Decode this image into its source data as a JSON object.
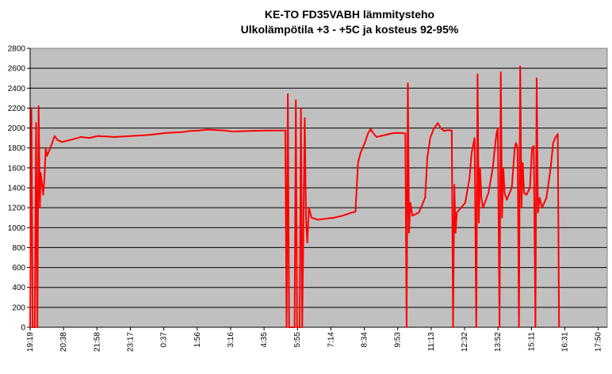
{
  "chart_data": {
    "type": "line",
    "title": "KE-TO FD35VABH lämmitysteho",
    "subtitle": "Ulkolämpötila  +3 - +5C ja kosteus 92-95%",
    "xlabel": "",
    "ylabel": "",
    "ylim": [
      0,
      2800
    ],
    "yticks": [
      0,
      200,
      400,
      600,
      800,
      1000,
      1200,
      1400,
      1600,
      1800,
      2000,
      2200,
      2400,
      2600,
      2800
    ],
    "xtick_labels": [
      "19:19",
      "20:38",
      "21:58",
      "23:17",
      "0:37",
      "1:56",
      "3:16",
      "4:35",
      "5:55",
      "7:14",
      "8:34",
      "9:53",
      "11:13",
      "12:32",
      "13:52",
      "15:11",
      "16:31",
      "17:50"
    ],
    "xlim": [
      0,
      1366
    ],
    "grid": true,
    "legend": "none",
    "plot_background": "#c0c0c0",
    "series": [
      {
        "color": "#ff0000",
        "points": [
          [
            0,
            0
          ],
          [
            3,
            2200
          ],
          [
            6,
            0
          ],
          [
            11,
            0
          ],
          [
            14,
            2050
          ],
          [
            17,
            0
          ],
          [
            20,
            2220
          ],
          [
            23,
            1200
          ],
          [
            25,
            1550
          ],
          [
            28,
            1450
          ],
          [
            31,
            1330
          ],
          [
            34,
            1500
          ],
          [
            37,
            1800
          ],
          [
            40,
            1720
          ],
          [
            48,
            1800
          ],
          [
            58,
            1920
          ],
          [
            65,
            1880
          ],
          [
            75,
            1860
          ],
          [
            95,
            1880
          ],
          [
            120,
            1910
          ],
          [
            140,
            1900
          ],
          [
            160,
            1920
          ],
          [
            200,
            1910
          ],
          [
            240,
            1920
          ],
          [
            280,
            1930
          ],
          [
            320,
            1950
          ],
          [
            360,
            1960
          ],
          [
            380,
            1970
          ],
          [
            400,
            1975
          ],
          [
            420,
            1985
          ],
          [
            440,
            1980
          ],
          [
            460,
            1975
          ],
          [
            480,
            1965
          ],
          [
            520,
            1970
          ],
          [
            560,
            1975
          ],
          [
            600,
            1975
          ],
          [
            604,
            1975
          ],
          [
            607,
            0
          ],
          [
            610,
            2340
          ],
          [
            613,
            0
          ],
          [
            626,
            0
          ],
          [
            629,
            2280
          ],
          [
            632,
            0
          ],
          [
            638,
            0
          ],
          [
            641,
            2200
          ],
          [
            644,
            0
          ],
          [
            650,
            2100
          ],
          [
            653,
            1100
          ],
          [
            656,
            850
          ],
          [
            660,
            1200
          ],
          [
            666,
            1100
          ],
          [
            680,
            1080
          ],
          [
            700,
            1090
          ],
          [
            720,
            1100
          ],
          [
            740,
            1120
          ],
          [
            760,
            1150
          ],
          [
            770,
            1160
          ],
          [
            776,
            1650
          ],
          [
            782,
            1750
          ],
          [
            792,
            1850
          ],
          [
            800,
            1950
          ],
          [
            806,
            1990
          ],
          [
            812,
            1950
          ],
          [
            820,
            1910
          ],
          [
            840,
            1930
          ],
          [
            860,
            1950
          ],
          [
            880,
            1950
          ],
          [
            888,
            1945
          ],
          [
            891,
            0
          ],
          [
            894,
            2450
          ],
          [
            897,
            950
          ],
          [
            900,
            1250
          ],
          [
            905,
            1120
          ],
          [
            920,
            1150
          ],
          [
            935,
            1300
          ],
          [
            940,
            1700
          ],
          [
            947,
            1900
          ],
          [
            955,
            1990
          ],
          [
            965,
            2050
          ],
          [
            972,
            2000
          ],
          [
            980,
            1970
          ],
          [
            990,
            1980
          ],
          [
            998,
            1975
          ],
          [
            1001,
            0
          ],
          [
            1004,
            1430
          ],
          [
            1007,
            950
          ],
          [
            1010,
            1150
          ],
          [
            1030,
            1250
          ],
          [
            1040,
            1500
          ],
          [
            1045,
            1750
          ],
          [
            1052,
            1900
          ],
          [
            1056,
            0
          ],
          [
            1059,
            2540
          ],
          [
            1062,
            1050
          ],
          [
            1065,
            1600
          ],
          [
            1068,
            1300
          ],
          [
            1072,
            1200
          ],
          [
            1085,
            1350
          ],
          [
            1095,
            1600
          ],
          [
            1100,
            1800
          ],
          [
            1104,
            1950
          ],
          [
            1107,
            2000
          ],
          [
            1111,
            0
          ],
          [
            1114,
            2560
          ],
          [
            1117,
            1100
          ],
          [
            1120,
            1600
          ],
          [
            1123,
            1350
          ],
          [
            1128,
            1280
          ],
          [
            1140,
            1400
          ],
          [
            1147,
            1800
          ],
          [
            1150,
            1850
          ],
          [
            1154,
            1800
          ],
          [
            1157,
            0
          ],
          [
            1160,
            2620
          ],
          [
            1163,
            1200
          ],
          [
            1166,
            1650
          ],
          [
            1169,
            1350
          ],
          [
            1175,
            1330
          ],
          [
            1183,
            1400
          ],
          [
            1188,
            1800
          ],
          [
            1192,
            1820
          ],
          [
            1196,
            0
          ],
          [
            1199,
            2500
          ],
          [
            1202,
            1150
          ],
          [
            1206,
            1300
          ],
          [
            1212,
            1200
          ],
          [
            1222,
            1300
          ],
          [
            1232,
            1600
          ],
          [
            1238,
            1850
          ],
          [
            1243,
            1900
          ],
          [
            1249,
            1940
          ],
          [
            1252,
            0
          ]
        ]
      }
    ]
  }
}
